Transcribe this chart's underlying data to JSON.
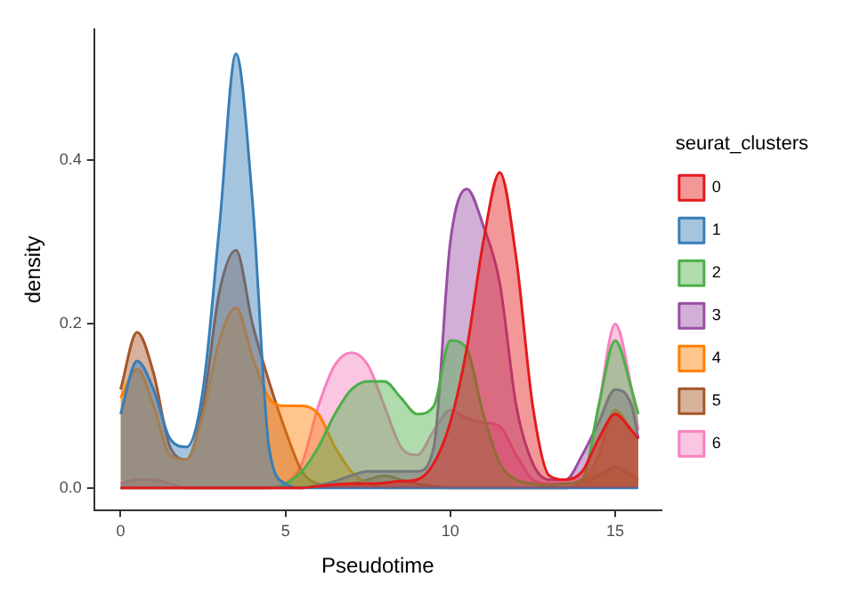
{
  "chart_data": {
    "type": "area",
    "xlabel": "Pseudotime",
    "ylabel": "density",
    "legend_title": "seurat_clusters",
    "legend": "right",
    "grid": false,
    "marker": "none",
    "x": [
      0,
      0.5,
      1,
      1.5,
      2,
      2.5,
      3,
      3.5,
      4,
      4.5,
      5,
      5.5,
      6,
      6.5,
      7,
      7.5,
      8,
      8.5,
      9,
      9.5,
      10,
      10.5,
      11,
      11.5,
      12,
      12.5,
      13,
      13.5,
      14,
      14.5,
      15,
      15.5,
      15.7
    ],
    "xlim": [
      -0.8,
      16.4
    ],
    "xticks": [
      0,
      5,
      10,
      15
    ],
    "ylim": [
      -0.027,
      0.56
    ],
    "yticks": [
      {
        "value": 0,
        "label": "0.0"
      },
      {
        "value": 0.2,
        "label": "0.2"
      },
      {
        "value": 0.4,
        "label": "0.4"
      }
    ],
    "series": [
      {
        "name": "0",
        "color": "#e41a1c",
        "values": [
          0,
          0,
          0,
          0,
          0,
          0,
          0,
          0,
          0,
          0,
          0,
          0,
          0.002,
          0.004,
          0.005,
          0.005,
          0.006,
          0.008,
          0.01,
          0.03,
          0.08,
          0.17,
          0.3,
          0.385,
          0.28,
          0.1,
          0.015,
          0.01,
          0.02,
          0.06,
          0.09,
          0.07,
          0.06
        ]
      },
      {
        "name": "1",
        "color": "#377eb8",
        "values": [
          0.09,
          0.155,
          0.12,
          0.06,
          0.05,
          0.12,
          0.32,
          0.53,
          0.35,
          0.05,
          0.005,
          0,
          0,
          0,
          0,
          0,
          0,
          0,
          0,
          0,
          0,
          0,
          0,
          0,
          0,
          0,
          0,
          0,
          0,
          0,
          0,
          0,
          0
        ]
      },
      {
        "name": "2",
        "color": "#4daf4a",
        "values": [
          0,
          0,
          0,
          0,
          0,
          0,
          0,
          0,
          0,
          0,
          0.005,
          0.02,
          0.05,
          0.09,
          0.12,
          0.13,
          0.13,
          0.11,
          0.09,
          0.1,
          0.18,
          0.17,
          0.09,
          0.03,
          0.01,
          0.005,
          0.003,
          0.005,
          0.01,
          0.1,
          0.18,
          0.12,
          0.09
        ]
      },
      {
        "name": "3",
        "color": "#984ea3",
        "values": [
          0,
          0,
          0,
          0,
          0,
          0,
          0,
          0,
          0,
          0,
          0,
          0,
          0.003,
          0.008,
          0.015,
          0.02,
          0.02,
          0.02,
          0.02,
          0.05,
          0.3,
          0.365,
          0.32,
          0.25,
          0.1,
          0.03,
          0.01,
          0.01,
          0.04,
          0.08,
          0.12,
          0.1,
          0.06
        ]
      },
      {
        "name": "4",
        "color": "#ff7f00",
        "values": [
          0.11,
          0.145,
          0.1,
          0.04,
          0.035,
          0.09,
          0.18,
          0.22,
          0.16,
          0.11,
          0.1,
          0.1,
          0.09,
          0.05,
          0.02,
          0.005,
          0,
          0,
          0,
          0,
          0,
          0,
          0,
          0,
          0,
          0,
          0,
          0,
          0.005,
          0.04,
          0.095,
          0.07,
          0.06
        ]
      },
      {
        "name": "5",
        "color": "#a65628",
        "values": [
          0.12,
          0.19,
          0.14,
          0.05,
          0.035,
          0.1,
          0.24,
          0.29,
          0.2,
          0.13,
          0.07,
          0.02,
          0.005,
          0.003,
          0.005,
          0.01,
          0.015,
          0.01,
          0.005,
          0.002,
          0,
          0,
          0,
          0,
          0,
          0,
          0,
          0,
          0.005,
          0.015,
          0.025,
          0.015,
          0.01
        ]
      },
      {
        "name": "6",
        "color": "#f781bf",
        "values": [
          0.005,
          0.01,
          0.01,
          0.005,
          0,
          0,
          0,
          0,
          0,
          0,
          0.005,
          0.03,
          0.1,
          0.15,
          0.165,
          0.15,
          0.1,
          0.05,
          0.04,
          0.07,
          0.095,
          0.085,
          0.08,
          0.075,
          0.04,
          0.01,
          0.005,
          0.005,
          0.01,
          0.1,
          0.2,
          0.12,
          0.07
        ]
      }
    ]
  }
}
